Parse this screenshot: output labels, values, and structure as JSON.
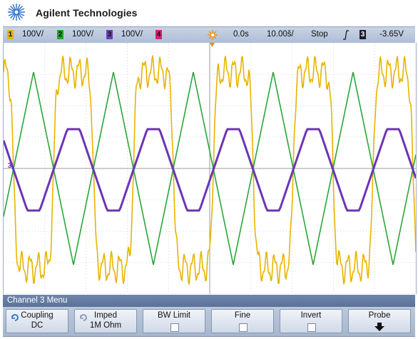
{
  "brand": {
    "name": "Agilent Technologies",
    "logo_icon": "agilent-spark-icon"
  },
  "status_bar": {
    "channels": [
      {
        "number": "1",
        "scale": "100V/",
        "color": "#e8b400"
      },
      {
        "number": "2",
        "scale": "100V/",
        "color": "#1fa629"
      },
      {
        "number": "3",
        "scale": "100V/",
        "color": "#6b3fb3"
      },
      {
        "number": "4",
        "scale": "",
        "color": "#d6226e"
      }
    ],
    "trigger_icon": "trigger-sun-icon",
    "time_delay": "0.0s",
    "time_scale": "10.00š/",
    "run_state": "Stop",
    "slope_icon": "rising-edge-icon",
    "trigger_channel": "3",
    "trigger_level": "-3.65V"
  },
  "screen": {
    "channel3_ground_marker": "3",
    "trace_colors": {
      "ch1": "#e8b400",
      "ch2": "#2aa63a",
      "ch3": "#6a35b5"
    },
    "grid": "on"
  },
  "menu": {
    "title": "Channel 3  Menu",
    "softkeys": [
      {
        "line1": "Coupling",
        "line2": "DC",
        "icon": "rotary-select-icon"
      },
      {
        "line1": "Imped",
        "line2": "1M Ohm",
        "icon": "rotary-select-icon"
      },
      {
        "line1": "BW Limit",
        "line2": ""
      },
      {
        "line1": "Fine",
        "line2": ""
      },
      {
        "line1": "Invert",
        "line2": ""
      },
      {
        "line1": "Probe",
        "line2": "",
        "icon": "down-arrow-icon"
      }
    ]
  }
}
